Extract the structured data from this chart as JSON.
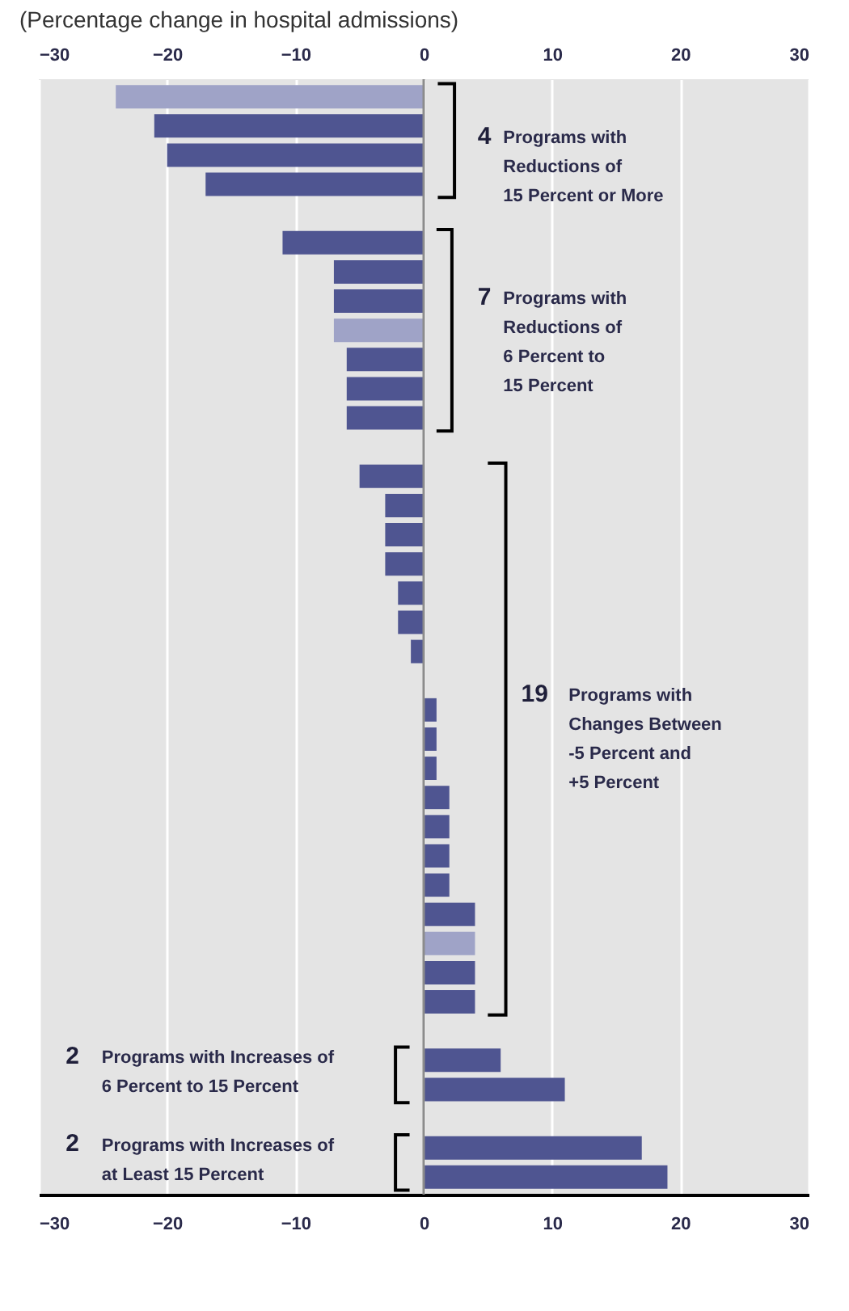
{
  "chart_data": {
    "type": "bar",
    "orientation": "horizontal",
    "title": "(Percentage change in hospital admissions)",
    "categories": [
      null,
      null,
      null,
      null,
      null,
      null,
      null,
      null,
      null,
      null,
      null,
      null,
      null,
      null,
      null,
      null,
      null,
      null,
      null,
      null,
      null,
      null,
      null,
      null,
      null,
      null,
      null,
      null,
      null,
      null,
      null,
      null,
      null,
      null,
      null,
      null,
      null,
      null
    ],
    "values": [
      -24,
      -21,
      -20,
      -17,
      null,
      -11,
      -7,
      -7,
      -7,
      -6,
      -6,
      -6,
      null,
      -5,
      -3,
      -3,
      -3,
      -2,
      -2,
      -1,
      0,
      1,
      1,
      1,
      2,
      2,
      2,
      2,
      4,
      4,
      4,
      4,
      null,
      6,
      11,
      null,
      17,
      19
    ],
    "colors": [
      "#9fa3c7",
      "#4f5591",
      "#4f5591",
      "#4f5591",
      null,
      "#4f5591",
      "#4f5591",
      "#4f5591",
      "#9fa3c7",
      "#4f5591",
      "#4f5591",
      "#4f5591",
      null,
      "#4f5591",
      "#4f5591",
      "#4f5591",
      "#4f5591",
      "#4f5591",
      "#4f5591",
      "#4f5591",
      "#4f5591",
      "#4f5591",
      "#4f5591",
      "#4f5591",
      "#4f5591",
      "#4f5591",
      "#4f5591",
      "#4f5591",
      "#4f5591",
      "#9fa3c7",
      "#4f5591",
      "#4f5591",
      null,
      "#4f5591",
      "#4f5591",
      null,
      "#4f5591",
      "#4f5591"
    ],
    "xlim": [
      -30,
      30
    ],
    "xticks": [
      -30,
      -20,
      -10,
      0,
      10,
      20,
      30
    ],
    "x2lim": [
      -30,
      30
    ],
    "x2ticks": [
      -30,
      -20,
      -10,
      0,
      10,
      20,
      30
    ],
    "grid": "x",
    "tick_labels": "x",
    "ref_lines": [
      {
        "axis": "x",
        "value": 0,
        "color": "#8c8c8c"
      }
    ],
    "annotations": [
      "4 Programs with Reductions of 15 Percent or More",
      "7 Programs with Reductions of 6 Percent to 15 Percent",
      "19 Programs with Changes Between -5 Percent and +5 Percent",
      "2 Programs with Increases of 6 Percent to 15 Percent",
      "2 Programs with Increases of at Least 15 Percent"
    ]
  }
}
